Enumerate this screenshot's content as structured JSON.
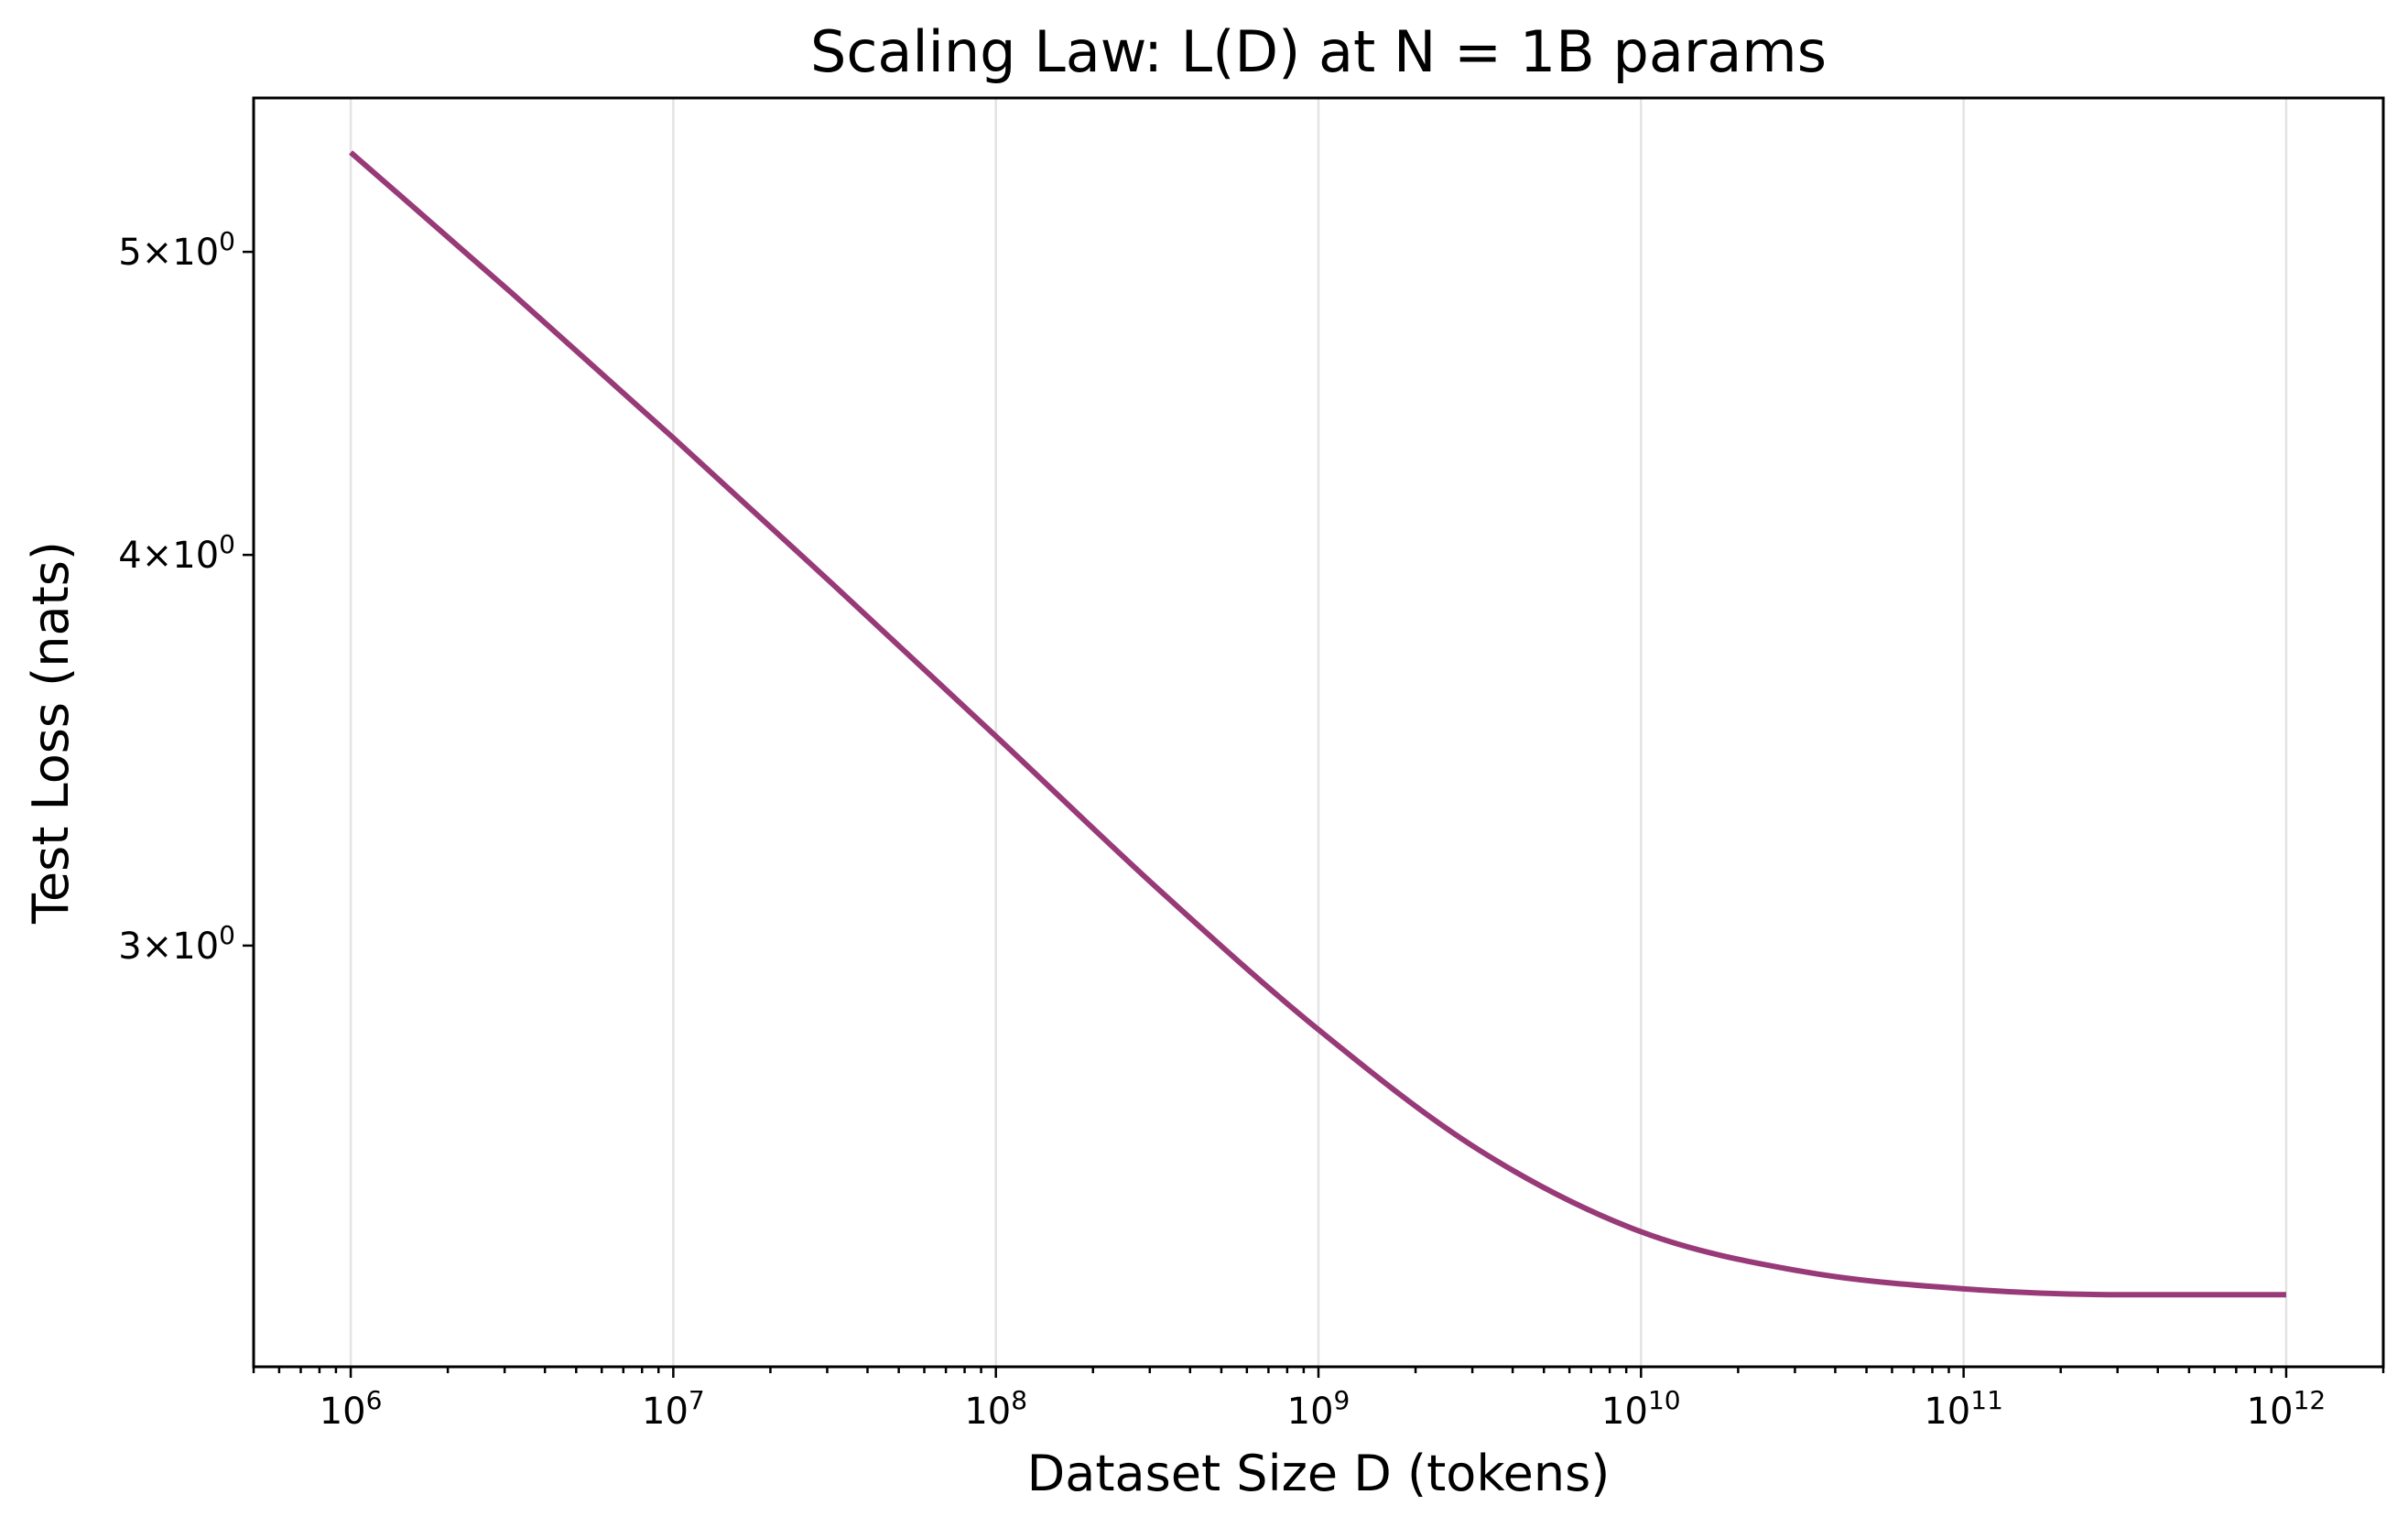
{
  "chart_data": {
    "type": "line",
    "title": "Scaling Law: L(D) at N = 1B params",
    "xlabel": "Dataset Size D (tokens)",
    "ylabel": "Test Loss (nats)",
    "x_scale": "log",
    "y_scale": "log",
    "xlim": [
      500000,
      2000000000000
    ],
    "ylim": [
      2.2,
      5.6
    ],
    "grid": "x-major",
    "x_ticks": [
      {
        "value": 1000000,
        "base": "10",
        "exp": "6"
      },
      {
        "value": 10000000,
        "base": "10",
        "exp": "7"
      },
      {
        "value": 100000000,
        "base": "10",
        "exp": "8"
      },
      {
        "value": 1000000000,
        "base": "10",
        "exp": "9"
      },
      {
        "value": 10000000000,
        "base": "10",
        "exp": "10"
      },
      {
        "value": 100000000000,
        "base": "10",
        "exp": "11"
      },
      {
        "value": 1000000000000,
        "base": "10",
        "exp": "12"
      }
    ],
    "y_ticks": [
      {
        "value": 3,
        "mantissa": "3",
        "base": "10",
        "exp": "0"
      },
      {
        "value": 4,
        "mantissa": "4",
        "base": "10",
        "exp": "0"
      },
      {
        "value": 5,
        "mantissa": "5",
        "base": "10",
        "exp": "0"
      }
    ],
    "series": [
      {
        "color": "#983a78",
        "x": [
          1000000,
          3160000,
          10000000,
          31600000,
          100000000,
          316000000,
          1000000000,
          3160000000,
          10000000000,
          31600000000,
          100000000000,
          316000000000,
          1000000000000
        ],
        "y": [
          5.38,
          4.85,
          4.36,
          3.91,
          3.5,
          3.13,
          2.82,
          2.58,
          2.43,
          2.36,
          2.33,
          2.32,
          2.32
        ]
      }
    ]
  }
}
